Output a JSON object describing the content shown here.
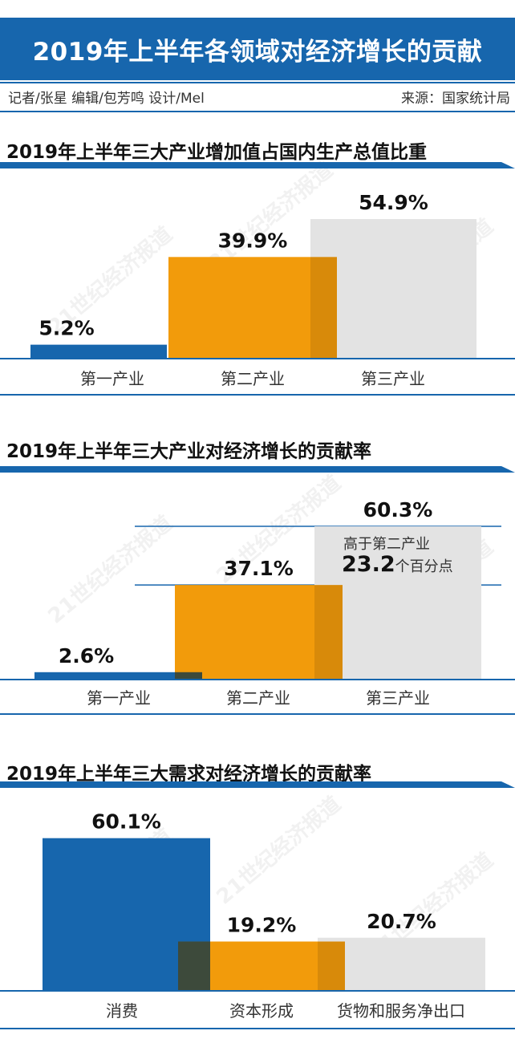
{
  "header": {
    "title": "2019年上半年各领域对经济增长的贡献",
    "credits": "记者/张星  编辑/包芳鸣  设计/Mel",
    "source": "来源：国家统计局"
  },
  "watermark": "21世纪经济报道",
  "colors": {
    "blue": "#1766ad",
    "orange": "#f29b0b",
    "gray": "#e3e3e3",
    "overlap": "#3d4a3b"
  },
  "chart_data": [
    {
      "type": "bar",
      "title": "2019年上半年三大产业增加值占国内生产总值比重",
      "categories": [
        "第一产业",
        "第二产业",
        "第三产业"
      ],
      "values": [
        5.2,
        39.9,
        54.9
      ],
      "value_labels": [
        "5.2%",
        "39.9%",
        "54.9%"
      ],
      "unit": "%"
    },
    {
      "type": "bar",
      "title": "2019年上半年三大产业对经济增长的贡献率",
      "categories": [
        "第一产业",
        "第二产业",
        "第三产业"
      ],
      "values": [
        2.6,
        37.1,
        60.3
      ],
      "value_labels": [
        "2.6%",
        "37.1%",
        "60.3%"
      ],
      "unit": "%",
      "annotation": {
        "line1": "高于第二产业",
        "number": "23.2",
        "suffix": "个百分点"
      }
    },
    {
      "type": "bar",
      "title": "2019年上半年三大需求对经济增长的贡献率",
      "categories": [
        "消费",
        "资本形成",
        "货物和服务净出口"
      ],
      "values": [
        60.1,
        19.2,
        20.7
      ],
      "value_labels": [
        "60.1%",
        "19.2%",
        "20.7%"
      ],
      "unit": "%"
    }
  ]
}
